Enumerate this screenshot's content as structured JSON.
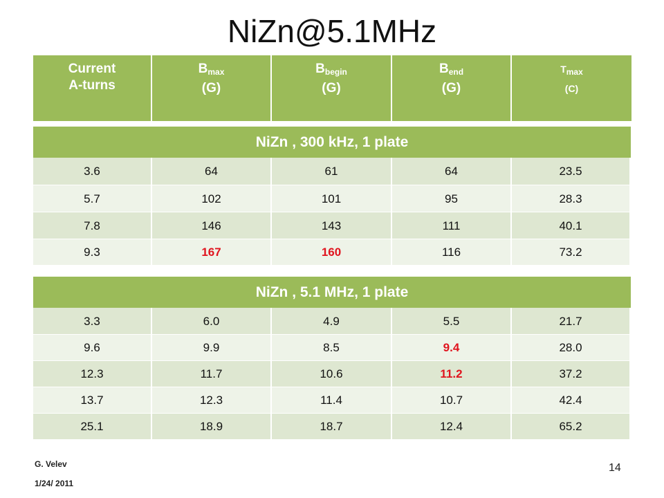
{
  "title": "NiZn@5.1MHz",
  "header": [
    {
      "lines": [
        "Current",
        "A-turns"
      ]
    },
    {
      "main": "B",
      "sub": "max",
      "unit": "(G)"
    },
    {
      "main": "B",
      "sub": "begin",
      "unit": "(G)"
    },
    {
      "main": "B",
      "sub": "end",
      "unit": "(G)"
    },
    {
      "main": "T",
      "sub": "max",
      "unit": "(C)"
    }
  ],
  "tables": [
    {
      "title": "NiZn , 300 kHz, 1 plate",
      "rows": [
        [
          "3.6",
          "64",
          "61",
          "64",
          "23.5"
        ],
        [
          "5.7",
          "102",
          "101",
          "95",
          "28.3"
        ],
        [
          "7.8",
          "146",
          "143",
          "111",
          "40.1"
        ],
        [
          "9.3",
          "167",
          "160",
          "116",
          "73.2"
        ]
      ],
      "highlight": [
        [
          3,
          1
        ],
        [
          3,
          2
        ]
      ]
    },
    {
      "title": "NiZn , 5.1 MHz, 1 plate",
      "rows": [
        [
          "3.3",
          "6.0",
          "4.9",
          "5.5",
          "21.7"
        ],
        [
          "9.6",
          "9.9",
          "8.5",
          "9.4",
          "28.0"
        ],
        [
          "12.3",
          "11.7",
          "10.6",
          "11.2",
          "37.2"
        ],
        [
          "13.7",
          "12.3",
          "11.4",
          "10.7",
          "42.4"
        ],
        [
          "25.1",
          "18.9",
          "18.7",
          "12.4",
          "65.2"
        ]
      ],
      "highlight": [
        [
          1,
          3
        ],
        [
          2,
          3
        ]
      ]
    }
  ],
  "highlight_color": "#e0141e",
  "footer": {
    "author": "G. Velev",
    "date": "1/24/ 2011",
    "page": "14"
  }
}
